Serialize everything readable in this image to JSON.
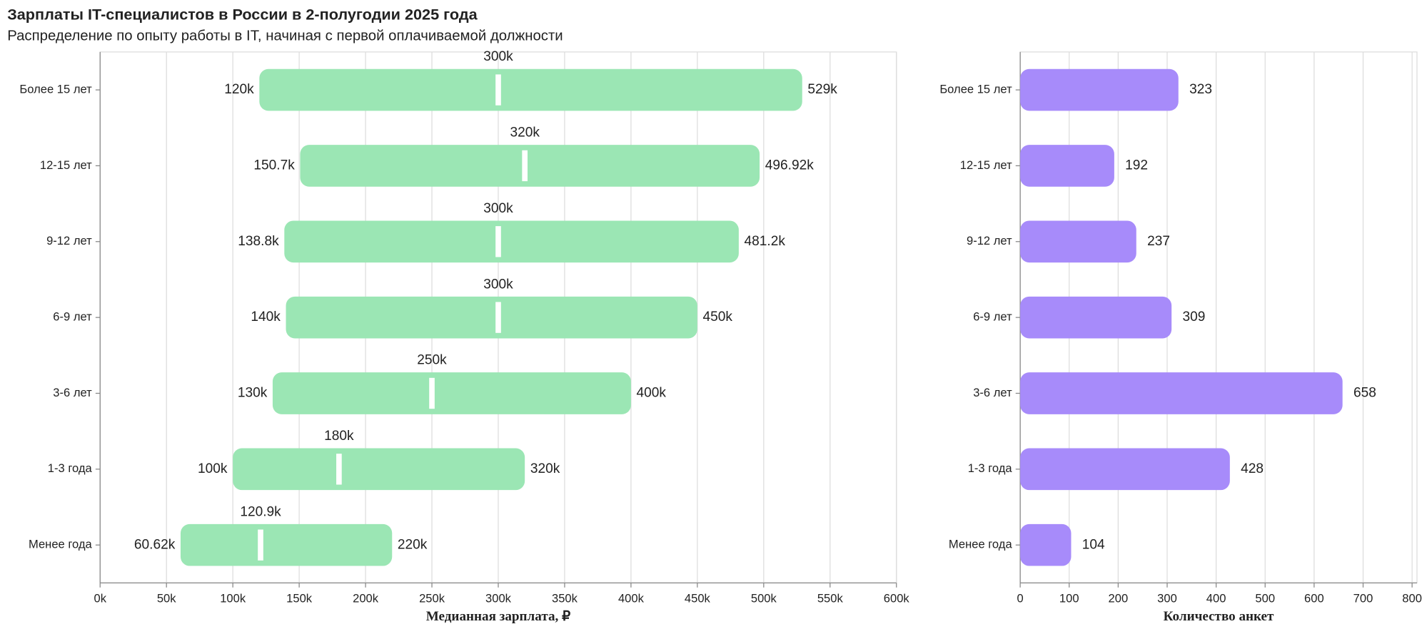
{
  "chart_data": [
    {
      "type": "range",
      "title": "Зарплаты IT-специалистов в России в 2-полугодии 2025 года",
      "subtitle": "Распределение по опыту работы в IT, начиная с первой оплачиваемой должности",
      "x_label": "Медианная зарплата, ₽",
      "categories": [
        "Более 15 лет",
        "12-15 лет",
        "9-12 лет",
        "6-9 лет",
        "3-6 лет",
        "1-3 года",
        "Менее года"
      ],
      "color": "#9be6b4",
      "median_color": "#ffffff",
      "low": {
        "values": [
          120000,
          150700,
          138800,
          140000,
          130000,
          100000,
          60620
        ],
        "value_labels": [
          "120k",
          "150.7k",
          "138.8k",
          "140k",
          "130k",
          "100k",
          "60.62k"
        ]
      },
      "high": {
        "values": [
          529000,
          496920,
          481200,
          450000,
          400000,
          320000,
          220000
        ],
        "value_labels": [
          "529k",
          "496.92k",
          "481.2k",
          "450k",
          "400k",
          "320k",
          "220k"
        ]
      },
      "median": {
        "values": [
          300000,
          320000,
          300000,
          300000,
          250000,
          180000,
          120900
        ],
        "value_labels": [
          "300k",
          "320k",
          "300k",
          "300k",
          "250k",
          "180k",
          "120.9k"
        ]
      },
      "xlim": [
        0,
        600000
      ],
      "xticks": [
        {
          "value": 0,
          "label": "0k"
        },
        {
          "value": 50000,
          "label": "50k"
        },
        {
          "value": 100000,
          "label": "100k"
        },
        {
          "value": 150000,
          "label": "150k"
        },
        {
          "value": 200000,
          "label": "200k"
        },
        {
          "value": 250000,
          "label": "250k"
        },
        {
          "value": 300000,
          "label": "300k"
        },
        {
          "value": 350000,
          "label": "350k"
        },
        {
          "value": 400000,
          "label": "400k"
        },
        {
          "value": 450000,
          "label": "450k"
        },
        {
          "value": 500000,
          "label": "500k"
        },
        {
          "value": 550000,
          "label": "550k"
        },
        {
          "value": 600000,
          "label": "600k"
        }
      ],
      "grid": true
    },
    {
      "type": "bar",
      "x_label": "Количество анкет",
      "categories": [
        "Более 15 лет",
        "12-15 лет",
        "9-12 лет",
        "6-9 лет",
        "3-6 лет",
        "1-3 года",
        "Менее года"
      ],
      "color": "#a78bfa",
      "values": [
        323,
        192,
        237,
        309,
        658,
        428,
        104
      ],
      "xlim": [
        0,
        810
      ],
      "xticks": [
        0,
        100,
        200,
        300,
        400,
        500,
        600,
        700,
        800
      ],
      "grid": true
    }
  ]
}
